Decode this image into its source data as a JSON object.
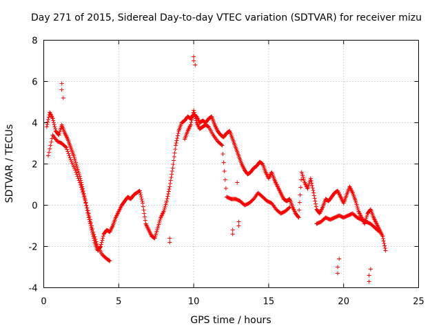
{
  "chart_data": {
    "type": "scatter",
    "title": "Day 271 of 2015, Sidereal Day-to-day VTEC variation (SDTVAR) for receiver mizu",
    "xlabel": "GPS time / hours",
    "ylabel": "SDTVAR / TECUs",
    "xlim": [
      0,
      25
    ],
    "ylim": [
      -4,
      8
    ],
    "xticks": [
      0,
      5,
      10,
      15,
      20,
      25
    ],
    "yticks": [
      -4,
      -2,
      0,
      2,
      4,
      6,
      8
    ],
    "xtick_labels": [
      "0",
      "5",
      "10",
      "15",
      "20",
      "25"
    ],
    "ytick_labels": [
      "-4",
      "-2",
      "0",
      "2",
      "4",
      "6",
      "8"
    ],
    "grid": true,
    "marker": "+",
    "series": [
      {
        "name": "main track",
        "x": [
          0.2,
          0.4,
          0.6,
          0.8,
          1.0,
          1.2,
          1.4,
          1.6,
          1.8,
          2.0,
          2.2,
          2.4,
          2.6,
          2.8,
          3.0,
          3.2,
          3.4,
          3.6,
          3.8,
          4.0,
          4.2,
          4.4,
          4.6,
          4.8,
          5.0,
          5.2,
          5.4,
          5.6,
          5.8,
          6.0,
          6.2,
          6.4,
          6.6,
          6.8,
          7.0,
          7.2,
          7.4,
          7.6,
          7.8,
          8.0,
          8.2,
          8.4,
          8.6,
          8.8,
          9.0,
          9.2,
          9.4,
          9.6,
          9.8,
          10.0,
          10.2,
          10.4,
          10.6,
          10.8,
          11.0,
          11.2,
          11.4,
          11.6,
          11.8,
          12.0,
          12.2,
          12.4,
          12.6,
          12.8,
          13.0,
          13.2,
          13.4,
          13.6,
          13.8,
          14.0,
          14.2,
          14.4,
          14.6,
          14.8,
          15.0,
          15.2,
          15.4,
          15.6,
          15.8,
          16.0,
          16.2,
          16.4,
          16.6,
          16.8,
          17.0,
          17.2,
          17.4,
          17.6,
          17.8,
          18.0,
          18.2,
          18.4,
          18.6,
          18.8,
          19.0,
          19.2,
          19.4,
          19.6,
          19.8,
          20.0,
          20.2,
          20.4,
          20.6,
          20.8,
          21.0,
          21.2,
          21.4,
          21.6,
          21.8,
          22.0,
          22.2,
          22.4,
          22.6,
          22.8
        ],
        "y": [
          3.8,
          4.5,
          4.2,
          3.6,
          3.4,
          3.9,
          3.5,
          3.2,
          2.8,
          2.4,
          1.9,
          1.4,
          0.8,
          0.1,
          -0.6,
          -1.2,
          -1.8,
          -2.2,
          -2.0,
          -1.4,
          -1.2,
          -1.3,
          -1.0,
          -0.6,
          -0.3,
          0.0,
          0.2,
          0.4,
          0.3,
          0.5,
          0.6,
          0.7,
          0.1,
          -0.9,
          -1.2,
          -1.5,
          -1.6,
          -1.1,
          -0.6,
          -0.3,
          0.2,
          0.9,
          1.8,
          2.9,
          3.6,
          4.0,
          4.1,
          4.3,
          4.2,
          4.4,
          4.3,
          4.0,
          4.1,
          4.0,
          4.2,
          4.3,
          3.9,
          3.6,
          3.4,
          3.3,
          3.5,
          3.6,
          3.2,
          2.8,
          2.4,
          2.0,
          1.7,
          1.5,
          1.6,
          1.8,
          1.9,
          2.1,
          2.0,
          1.6,
          1.3,
          1.6,
          1.2,
          0.9,
          0.6,
          0.3,
          0.2,
          0.3,
          -0.1,
          -0.4,
          -0.6,
          1.6,
          1.1,
          0.8,
          1.3,
          0.6,
          -0.2,
          -0.4,
          -0.1,
          0.3,
          0.2,
          0.4,
          0.6,
          0.7,
          0.4,
          0.1,
          0.5,
          0.9,
          0.6,
          0.2,
          -0.3,
          -0.6,
          -0.9,
          -0.4,
          -0.2,
          -0.6,
          -0.9,
          -1.2,
          -1.5,
          -2.2
        ]
      },
      {
        "name": "secondary track",
        "x": [
          0.3,
          0.6,
          0.9,
          1.2,
          1.5,
          1.8,
          2.1,
          2.4,
          2.7,
          3.0,
          3.3,
          3.6,
          3.9,
          4.2,
          4.4,
          9.4,
          9.6,
          9.8,
          10.0,
          10.2,
          10.4,
          10.6,
          10.8,
          11.0,
          11.3,
          11.6,
          11.9,
          12.2,
          12.5,
          12.8,
          13.1,
          13.4,
          13.7,
          14.0,
          14.3,
          14.6,
          14.9,
          15.2,
          15.5,
          15.8,
          16.1,
          16.4,
          18.2,
          18.5,
          18.8,
          19.1,
          19.4,
          19.7,
          20.0,
          20.3,
          20.6,
          20.9,
          21.2,
          21.5,
          21.8,
          22.1,
          22.4
        ],
        "y": [
          2.4,
          3.4,
          3.1,
          3.0,
          2.8,
          2.2,
          1.7,
          1.1,
          0.4,
          -0.4,
          -1.3,
          -2.0,
          -2.4,
          -2.6,
          -2.7,
          3.2,
          3.6,
          3.9,
          4.6,
          4.0,
          3.7,
          3.8,
          3.9,
          3.8,
          3.4,
          3.1,
          2.9,
          0.4,
          0.3,
          0.3,
          0.2,
          0.0,
          0.1,
          0.3,
          0.6,
          0.4,
          0.2,
          0.1,
          -0.2,
          -0.4,
          -0.3,
          -0.1,
          -0.9,
          -0.8,
          -0.6,
          -0.7,
          -0.6,
          -0.5,
          -0.6,
          -0.5,
          -0.4,
          -0.6,
          -0.7,
          -0.8,
          -0.9,
          -1.1,
          -1.3
        ]
      },
      {
        "name": "spikes",
        "x": [
          1.2,
          1.2,
          1.3,
          10.0,
          10.0,
          10.1,
          12.6,
          12.6,
          13.0,
          13.0,
          19.6,
          19.6,
          19.7,
          21.7,
          21.7,
          21.8,
          8.4,
          8.4,
          12.9
        ],
        "y": [
          5.9,
          5.6,
          5.2,
          7.2,
          7.0,
          6.8,
          -1.2,
          -1.4,
          -0.8,
          -1.0,
          -3.0,
          -3.3,
          -2.6,
          -3.7,
          -3.4,
          -3.1,
          -1.6,
          -1.8,
          1.1
        ]
      }
    ]
  }
}
